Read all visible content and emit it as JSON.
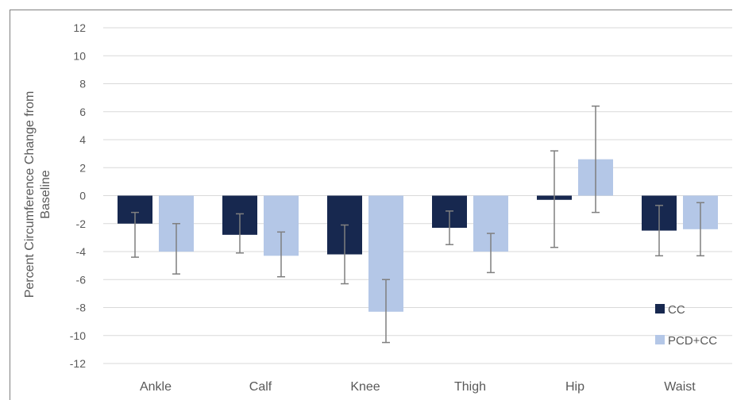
{
  "chart_data": {
    "type": "bar",
    "title": "",
    "xlabel": "",
    "ylabel": "Percent Circumference Change from Baseline",
    "ylabel_lines": [
      "Percent Circumference Change from",
      "Baseline"
    ],
    "ylim": [
      -12,
      12
    ],
    "yticks": [
      12,
      10,
      8,
      6,
      4,
      2,
      0,
      -2,
      -4,
      -6,
      -8,
      -10,
      -12
    ],
    "grid": true,
    "legend_position": "bottom-right",
    "categories": [
      "Ankle",
      "Calf",
      "Knee",
      "Thigh",
      "Hip",
      "Waist"
    ],
    "series": [
      {
        "name": "CC",
        "color": "#17284f",
        "values": [
          -2.0,
          -2.8,
          -4.2,
          -2.3,
          -0.3,
          -2.5
        ],
        "error_low": [
          -4.4,
          -4.1,
          -6.3,
          -3.5,
          -3.7,
          -4.3
        ],
        "error_high": [
          -1.2,
          -1.3,
          -2.1,
          -1.1,
          3.2,
          -0.7
        ]
      },
      {
        "name": "PCD+CC",
        "color": "#b4c7e7",
        "values": [
          -4.0,
          -4.3,
          -8.3,
          -4.0,
          2.6,
          -2.4
        ],
        "error_low": [
          -5.6,
          -5.8,
          -10.5,
          -5.5,
          -1.2,
          -4.3
        ],
        "error_high": [
          -2.0,
          -2.6,
          -6.0,
          -2.7,
          6.4,
          -0.5
        ]
      }
    ]
  }
}
